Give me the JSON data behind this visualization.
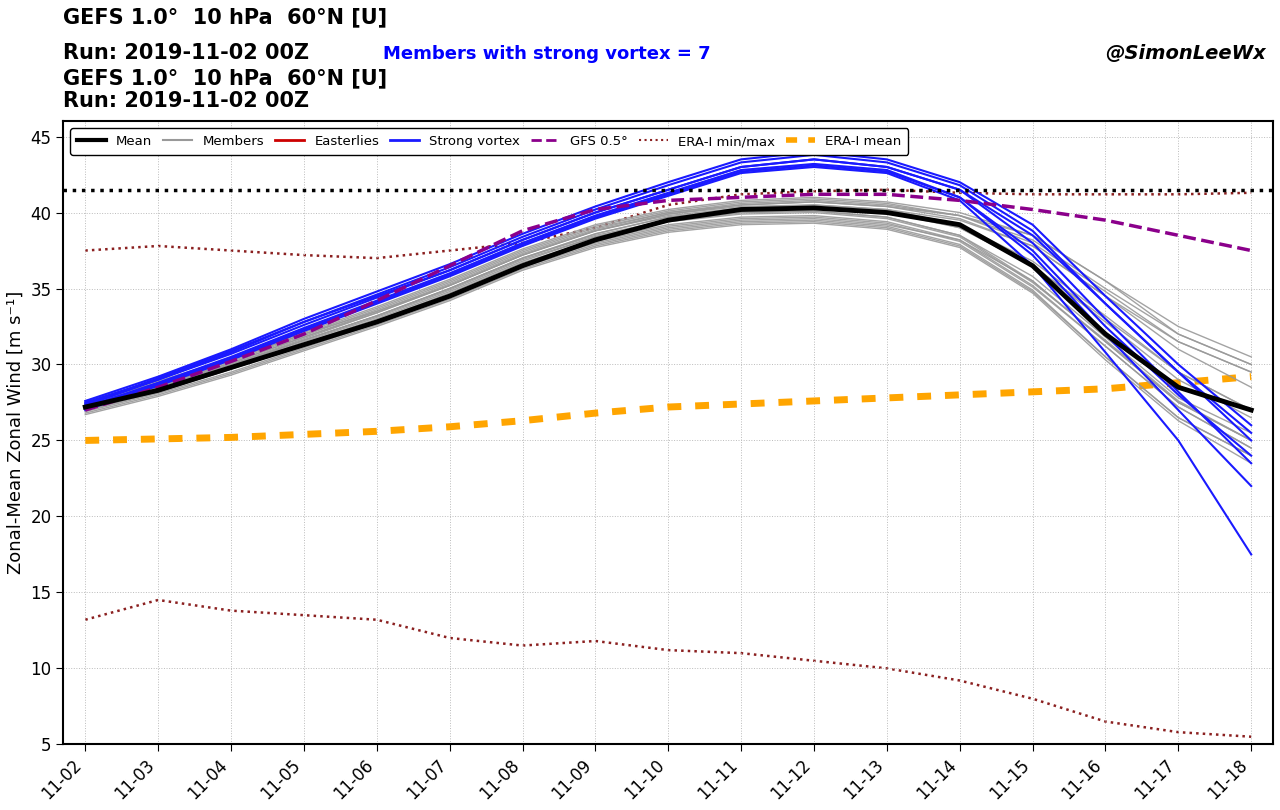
{
  "title_line1": "GEFS 1.0°  10 hPa  60°N [U]",
  "title_line2": "Run: 2019-11-02 00Z",
  "title_members": "Members with strong vortex = 7",
  "watermark": "@SimonLeeWx",
  "ylabel": "Zonal-Mean Zonal Wind [m s⁻¹]",
  "ylim": [
    5,
    46
  ],
  "yticks": [
    5,
    10,
    15,
    20,
    25,
    30,
    35,
    40,
    45
  ],
  "xtick_labels": [
    "11-02",
    "11-03",
    "11-04",
    "11-05",
    "11-06",
    "11-07",
    "11-08",
    "11-09",
    "11-10",
    "11-11",
    "11-12",
    "11-13",
    "11-14",
    "11-15",
    "11-16",
    "11-17",
    "11-18"
  ],
  "hline_value": 41.5,
  "colors": {
    "mean": "#000000",
    "members": "#999999",
    "easterlies": "#cc0000",
    "strong_vortex": "#1a1aff",
    "gfs05": "#8b008b",
    "era_minmax": "#8b2020",
    "era_mean": "#ffa500",
    "background": "#ffffff",
    "grid": "#bbbbbb"
  },
  "n_days": 17,
  "mean_data": [
    27.2,
    28.3,
    29.8,
    31.3,
    32.8,
    34.5,
    36.5,
    38.2,
    39.5,
    40.2,
    40.3,
    40.0,
    39.2,
    36.5,
    32.0,
    28.5,
    27.0
  ],
  "gfs05_data": [
    27.0,
    28.5,
    30.2,
    32.0,
    34.2,
    36.5,
    38.8,
    40.2,
    40.8,
    41.0,
    41.2,
    41.2,
    40.8,
    40.2,
    39.5,
    38.5,
    37.5
  ],
  "era_mean_data": [
    25.0,
    25.1,
    25.2,
    25.4,
    25.6,
    25.9,
    26.3,
    26.8,
    27.2,
    27.4,
    27.6,
    27.8,
    28.0,
    28.2,
    28.4,
    28.8,
    29.2
  ],
  "era_max_data": [
    37.5,
    37.8,
    37.5,
    37.2,
    37.0,
    37.5,
    38.0,
    39.0,
    40.5,
    41.2,
    41.4,
    41.5,
    41.3,
    41.2,
    41.2,
    41.2,
    41.3
  ],
  "era_min_data": [
    13.2,
    14.5,
    13.8,
    13.5,
    13.2,
    12.0,
    11.5,
    11.8,
    11.2,
    11.0,
    10.5,
    10.0,
    9.2,
    8.0,
    6.5,
    5.8,
    5.5
  ],
  "members_data": [
    [
      27.5,
      28.8,
      30.3,
      32.0,
      33.5,
      35.2,
      37.2,
      38.8,
      39.8,
      40.3,
      40.5,
      40.2,
      39.5,
      37.8,
      34.5,
      31.5,
      29.5
    ],
    [
      27.0,
      28.2,
      29.7,
      31.2,
      32.7,
      34.5,
      36.5,
      38.0,
      39.0,
      39.5,
      39.6,
      39.2,
      38.2,
      35.5,
      31.5,
      27.5,
      25.0
    ],
    [
      27.3,
      28.5,
      30.0,
      31.6,
      33.2,
      35.0,
      37.0,
      38.6,
      39.7,
      40.2,
      40.3,
      40.0,
      39.0,
      36.5,
      33.0,
      29.5,
      27.0
    ],
    [
      27.1,
      28.3,
      29.8,
      31.4,
      33.0,
      34.8,
      36.8,
      38.4,
      39.4,
      40.0,
      40.1,
      39.7,
      38.5,
      35.8,
      31.8,
      27.8,
      25.5
    ],
    [
      27.4,
      28.6,
      30.1,
      31.8,
      33.4,
      35.2,
      37.2,
      38.8,
      39.9,
      40.5,
      40.7,
      40.4,
      39.8,
      38.2,
      35.0,
      32.0,
      30.0
    ],
    [
      26.8,
      28.0,
      29.4,
      31.0,
      32.6,
      34.3,
      36.3,
      37.8,
      38.8,
      39.3,
      39.4,
      39.0,
      37.8,
      34.8,
      30.5,
      26.5,
      24.0
    ],
    [
      27.2,
      28.4,
      29.9,
      31.6,
      33.2,
      35.0,
      37.0,
      38.6,
      39.7,
      40.2,
      40.4,
      40.1,
      39.0,
      36.5,
      32.8,
      29.0,
      26.5
    ],
    [
      27.0,
      28.2,
      29.7,
      31.3,
      32.9,
      34.7,
      36.7,
      38.2,
      39.2,
      39.7,
      39.8,
      39.4,
      38.2,
      35.2,
      31.2,
      27.2,
      24.5
    ],
    [
      27.5,
      28.8,
      30.3,
      32.0,
      33.7,
      35.5,
      37.5,
      39.1,
      40.1,
      40.7,
      40.9,
      40.6,
      39.8,
      38.5,
      35.5,
      32.5,
      30.5
    ],
    [
      26.9,
      28.1,
      29.5,
      31.1,
      32.7,
      34.4,
      36.4,
      37.9,
      38.9,
      39.4,
      39.5,
      39.1,
      37.9,
      34.9,
      30.5,
      26.5,
      24.0
    ],
    [
      27.3,
      28.5,
      30.0,
      31.7,
      33.4,
      35.2,
      37.2,
      38.8,
      39.9,
      40.4,
      40.5,
      40.2,
      39.2,
      36.8,
      33.2,
      29.5,
      27.0
    ],
    [
      27.1,
      28.3,
      29.8,
      31.5,
      33.1,
      34.9,
      36.9,
      38.4,
      39.4,
      39.9,
      40.0,
      39.6,
      38.4,
      35.4,
      31.6,
      27.6,
      25.0
    ],
    [
      27.4,
      28.7,
      30.2,
      31.9,
      33.6,
      35.4,
      37.4,
      39.0,
      40.0,
      40.6,
      40.8,
      40.5,
      39.8,
      38.0,
      34.8,
      31.5,
      29.5
    ],
    [
      27.0,
      28.2,
      29.7,
      31.3,
      32.9,
      34.6,
      36.6,
      38.1,
      39.1,
      39.6,
      39.7,
      39.3,
      38.1,
      35.1,
      31.2,
      27.2,
      24.5
    ],
    [
      27.2,
      28.4,
      29.9,
      31.6,
      33.2,
      35.0,
      37.0,
      38.5,
      39.5,
      40.0,
      40.1,
      39.7,
      38.5,
      35.5,
      31.5,
      27.5,
      25.0
    ],
    [
      27.6,
      28.9,
      30.4,
      32.1,
      33.8,
      35.6,
      37.6,
      39.2,
      40.2,
      40.8,
      41.0,
      40.7,
      40.0,
      38.5,
      35.5,
      32.0,
      30.0
    ],
    [
      26.7,
      27.9,
      29.3,
      30.9,
      32.5,
      34.2,
      36.2,
      37.7,
      38.7,
      39.2,
      39.3,
      38.9,
      37.7,
      34.7,
      30.3,
      26.3,
      23.5
    ],
    [
      27.3,
      28.6,
      30.1,
      31.8,
      33.5,
      35.3,
      37.3,
      38.9,
      40.0,
      40.5,
      40.7,
      40.4,
      39.6,
      37.8,
      34.5,
      31.0,
      28.5
    ]
  ],
  "strong_vortex_data": [
    [
      27.5,
      29.0,
      30.8,
      32.8,
      34.5,
      36.2,
      38.2,
      40.0,
      41.5,
      43.0,
      43.5,
      43.0,
      41.5,
      38.5,
      34.0,
      29.5,
      25.5
    ],
    [
      27.2,
      28.8,
      30.5,
      32.4,
      34.2,
      36.0,
      38.0,
      39.8,
      41.3,
      42.8,
      43.2,
      42.8,
      41.0,
      37.5,
      32.5,
      28.0,
      24.0
    ],
    [
      27.3,
      29.0,
      30.7,
      32.6,
      34.4,
      36.2,
      38.2,
      40.0,
      41.5,
      43.0,
      43.5,
      43.0,
      41.5,
      38.0,
      33.0,
      28.2,
      23.5
    ],
    [
      27.4,
      29.1,
      30.9,
      32.8,
      34.6,
      36.4,
      38.4,
      40.2,
      41.8,
      43.3,
      43.8,
      43.3,
      41.8,
      38.8,
      34.0,
      29.5,
      25.0
    ],
    [
      27.1,
      28.7,
      30.4,
      32.3,
      34.1,
      35.9,
      37.9,
      39.7,
      41.2,
      42.7,
      43.1,
      42.7,
      41.0,
      37.2,
      32.0,
      27.0,
      22.0
    ],
    [
      27.6,
      29.2,
      31.0,
      33.0,
      34.8,
      36.6,
      38.6,
      40.4,
      42.0,
      43.5,
      44.0,
      43.5,
      42.0,
      39.2,
      34.5,
      30.0,
      26.0
    ],
    [
      27.0,
      28.6,
      30.3,
      32.2,
      34.0,
      35.8,
      37.8,
      39.6,
      41.1,
      42.6,
      43.0,
      42.6,
      40.8,
      36.5,
      30.8,
      25.0,
      17.5
    ]
  ]
}
